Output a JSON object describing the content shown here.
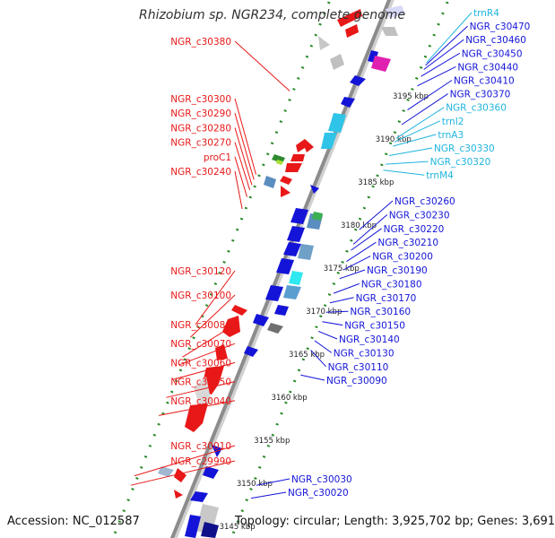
{
  "title": "Rhizobium sp. NGR234, complete genome",
  "footer": {
    "accession": "Accession: NC_012587",
    "topology": "Topology: circular; Length: 3,925,702 bp; Genes: 3,691"
  },
  "colors": {
    "forward_gene": "#e81818",
    "reverse_gene": "#1414d8",
    "trna": "#2fc4e8",
    "trna_label": "#1fb5de",
    "pseudo": "#c8c8c8",
    "axis": "#8c8c8c",
    "scale": "#2a8a2a"
  },
  "scale_labels": [
    {
      "kbp": 3145,
      "label": "3145 kbp"
    },
    {
      "kbp": 3150,
      "label": "3150 kbp"
    },
    {
      "kbp": 3155,
      "label": "3155 kbp"
    },
    {
      "kbp": 3160,
      "label": "3160 kbp"
    },
    {
      "kbp": 3165,
      "label": "3165 kbp"
    },
    {
      "kbp": 3170,
      "label": "3170 kbp"
    },
    {
      "kbp": 3175,
      "label": "3175 kbp"
    },
    {
      "kbp": 3180,
      "label": "3180 kbp"
    },
    {
      "kbp": 3185,
      "label": "3185 kbp"
    },
    {
      "kbp": 3190,
      "label": "3190 kbp"
    },
    {
      "kbp": 3195,
      "label": "3195 kbp"
    }
  ],
  "forward_labels": [
    {
      "name": "NGR_c30380",
      "kbp": 3196.3
    },
    {
      "name": "NGR_c30300",
      "kbp": 3186.6
    },
    {
      "name": "NGR_c30290",
      "kbp": 3186.0
    },
    {
      "name": "NGR_c30280",
      "kbp": 3185.4
    },
    {
      "name": "NGR_c30270",
      "kbp": 3184.8
    },
    {
      "name": "proC1",
      "kbp": 3184.0
    },
    {
      "name": "NGR_c30240",
      "kbp": 3182.6
    },
    {
      "name": "NGR_c30120",
      "kbp": 3169.2
    },
    {
      "name": "NGR_c30100",
      "kbp": 3167.7
    },
    {
      "name": "NGR_c30080",
      "kbp": 3165.4
    },
    {
      "name": "NGR_c30070",
      "kbp": 3164.5
    },
    {
      "name": "NGR_c30060",
      "kbp": 3162.8
    },
    {
      "name": "NGR_c30050",
      "kbp": 3160.7
    },
    {
      "name": "NGR_c30040",
      "kbp": 3158.6
    },
    {
      "name": "NGR_c30010",
      "kbp": 3151.6
    },
    {
      "name": "NGR_c29990",
      "kbp": 3150.5
    }
  ],
  "reverse_labels": [
    {
      "name": "trnR4",
      "kbp": 3199.6,
      "trna": true
    },
    {
      "name": "NGR_c30470",
      "kbp": 3199.3,
      "trna": false
    },
    {
      "name": "NGR_c30460",
      "kbp": 3198.8,
      "trna": false
    },
    {
      "name": "NGR_c30450",
      "kbp": 3198.0,
      "trna": false
    },
    {
      "name": "NGR_c30440",
      "kbp": 3196.9,
      "trna": false
    },
    {
      "name": "NGR_c30410",
      "kbp": 3194.1,
      "trna": false
    },
    {
      "name": "NGR_c30370",
      "kbp": 3192.4,
      "trna": false
    },
    {
      "name": "NGR_c30360",
      "kbp": 3190.8,
      "trna": true
    },
    {
      "name": "trnI2",
      "kbp": 3190.4,
      "trna": true
    },
    {
      "name": "trnA3",
      "kbp": 3189.9,
      "trna": true
    },
    {
      "name": "NGR_c30330",
      "kbp": 3188.8,
      "trna": true
    },
    {
      "name": "NGR_c30320",
      "kbp": 3187.8,
      "trna": true
    },
    {
      "name": "trnM4",
      "kbp": 3187.1,
      "trna": true
    },
    {
      "name": "NGR_c30260",
      "kbp": 3180.2,
      "trna": false
    },
    {
      "name": "NGR_c30230",
      "kbp": 3178.5,
      "trna": false
    },
    {
      "name": "NGR_c30220",
      "kbp": 3177.8,
      "trna": false
    },
    {
      "name": "NGR_c30210",
      "kbp": 3176.5,
      "trna": false
    },
    {
      "name": "NGR_c30200",
      "kbp": 3175.5,
      "trna": false
    },
    {
      "name": "NGR_c30190",
      "kbp": 3174.5,
      "trna": false
    },
    {
      "name": "NGR_c30180",
      "kbp": 3172.8,
      "trna": false
    },
    {
      "name": "NGR_c30170",
      "kbp": 3171.7,
      "trna": false
    },
    {
      "name": "NGR_c30160",
      "kbp": 3170.6,
      "trna": false
    },
    {
      "name": "NGR_c30150",
      "kbp": 3169.5,
      "trna": false
    },
    {
      "name": "NGR_c30140",
      "kbp": 3168.4,
      "trna": false
    },
    {
      "name": "NGR_c30130",
      "kbp": 3167.3,
      "trna": false
    },
    {
      "name": "NGR_c30110",
      "kbp": 3166.2,
      "trna": false
    },
    {
      "name": "NGR_c30090",
      "kbp": 3163.3,
      "trna": false
    },
    {
      "name": "NGR_c30030",
      "kbp": 3150.5,
      "trna": false
    },
    {
      "name": "NGR_c30020",
      "kbp": 3149.0,
      "trna": false
    }
  ]
}
